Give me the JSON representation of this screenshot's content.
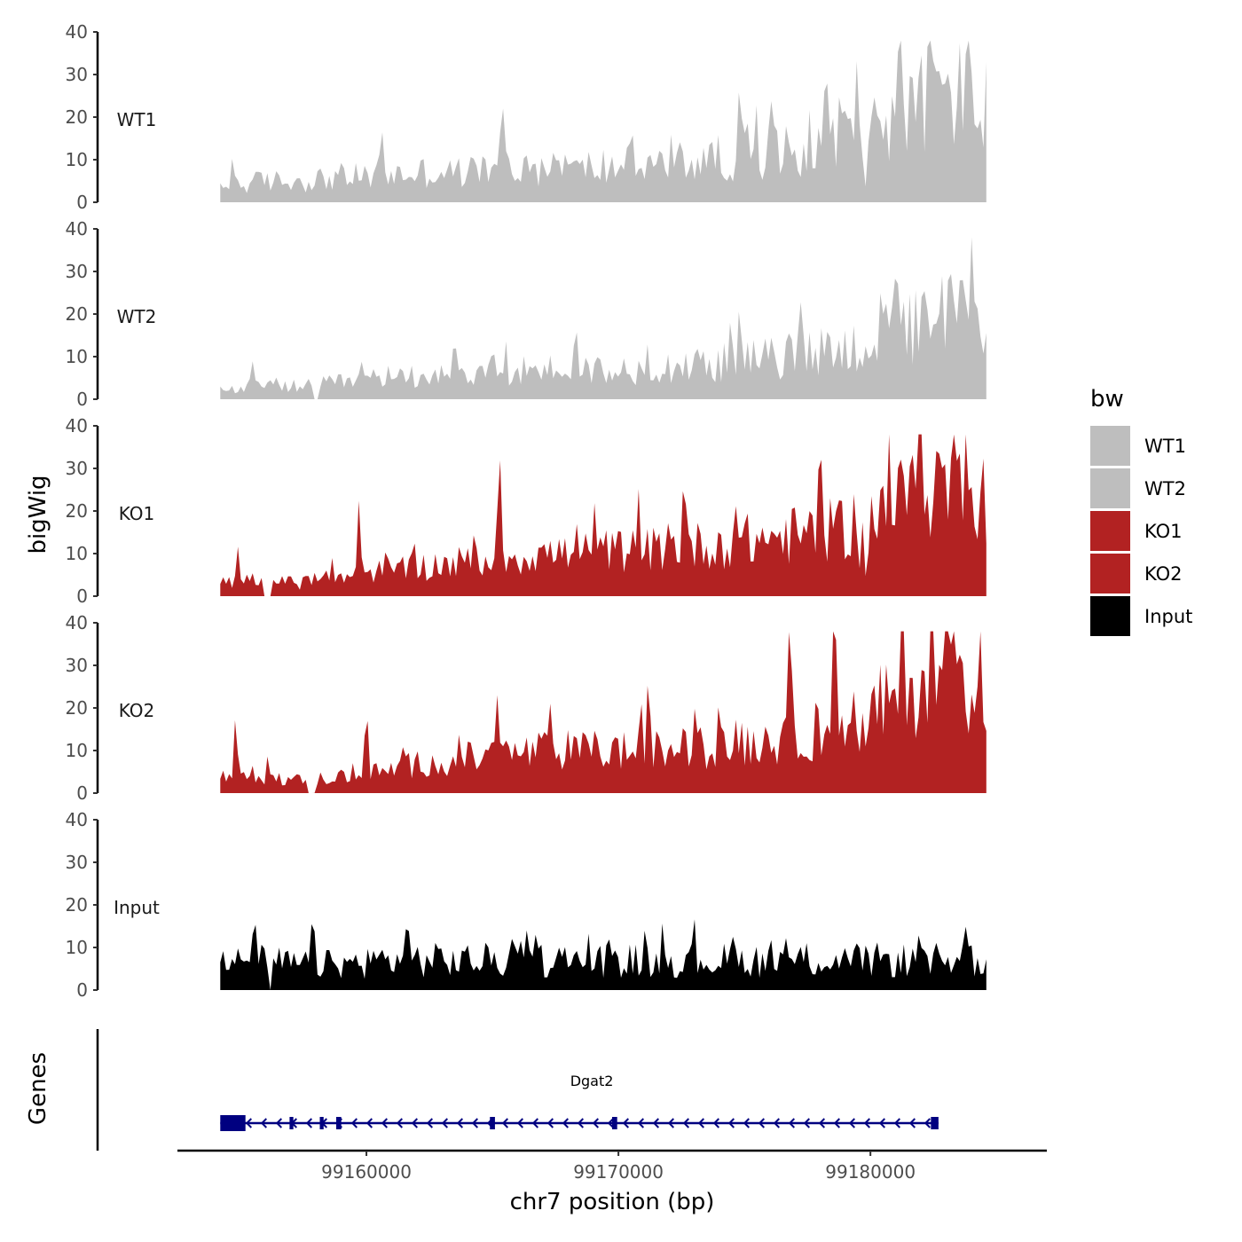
{
  "chart_data": {
    "type": "area",
    "ylabel": "bigWig",
    "xlabel": "chr7 position (bp)",
    "genes_label": "Genes",
    "xlim": [
      99152500,
      99187000
    ],
    "data_xlim": [
      99154200,
      99184600
    ],
    "x_ticks": [
      99160000,
      99170000,
      99180000
    ],
    "x_tick_labels": [
      "99160000",
      "99170000",
      "99180000"
    ],
    "ylim": [
      0,
      40
    ],
    "y_ticks": [
      0,
      10,
      20,
      30,
      40
    ],
    "y_tick_labels": [
      "0",
      "10",
      "20",
      "30",
      "40"
    ],
    "legend": {
      "title": "bw",
      "entries": [
        {
          "label": "WT1",
          "color": "#BEBEBE"
        },
        {
          "label": "WT2",
          "color": "#BEBEBE"
        },
        {
          "label": "KO1",
          "color": "#B22222"
        },
        {
          "label": "KO2",
          "color": "#B22222"
        },
        {
          "label": "Input",
          "color": "#000000"
        }
      ]
    },
    "series": [
      {
        "name": "WT1",
        "color": "#BEBEBE",
        "baseline": [
          3,
          5,
          5,
          6,
          6,
          7,
          7,
          8,
          8,
          8,
          9,
          9,
          10,
          11,
          12,
          14,
          17,
          21,
          26,
          23
        ],
        "amplitude": 0.55,
        "peaks": [
          [
            99154700,
            8
          ],
          [
            99160600,
            13
          ],
          [
            99165400,
            15
          ],
          [
            99174800,
            15
          ],
          [
            99178200,
            18
          ],
          [
            99181200,
            25
          ],
          [
            99182400,
            26
          ],
          [
            99183900,
            20
          ]
        ],
        "dips": [
          [
            99179800,
            4
          ]
        ]
      },
      {
        "name": "WT2",
        "color": "#BEBEBE",
        "baseline": [
          2,
          3,
          3,
          4,
          5,
          6,
          6,
          7,
          7,
          7,
          7,
          8,
          8,
          9,
          10,
          11,
          13,
          16,
          20,
          18
        ],
        "amplitude": 0.55,
        "peaks": [
          [
            99155500,
            5
          ],
          [
            99163500,
            9
          ],
          [
            99168300,
            10
          ],
          [
            99174800,
            12
          ],
          [
            99177200,
            13
          ],
          [
            99181000,
            15
          ],
          [
            99184000,
            16
          ]
        ],
        "dips": [
          [
            99158000,
            8
          ],
          [
            99169800,
            4
          ]
        ]
      },
      {
        "name": "KO1",
        "color": "#B22222",
        "baseline": [
          3,
          4,
          3,
          5,
          6,
          7,
          8,
          9,
          10,
          10,
          11,
          11,
          12,
          13,
          14,
          15,
          18,
          23,
          28,
          24
        ],
        "amplitude": 0.5,
        "peaks": [
          [
            99154900,
            7
          ],
          [
            99159700,
            14
          ],
          [
            99165300,
            19
          ],
          [
            99172600,
            18
          ],
          [
            99178000,
            21
          ],
          [
            99181900,
            33
          ],
          [
            99183800,
            34
          ]
        ],
        "dips": [
          [
            99156100,
            7
          ],
          [
            99179700,
            10
          ]
        ]
      },
      {
        "name": "KO2",
        "color": "#B22222",
        "baseline": [
          4,
          4,
          3,
          4,
          5,
          7,
          8,
          9,
          10,
          10,
          10,
          10,
          11,
          12,
          13,
          15,
          18,
          24,
          30,
          26
        ],
        "amplitude": 0.5,
        "peaks": [
          [
            99154800,
            12
          ],
          [
            99160000,
            15
          ],
          [
            99165200,
            17
          ],
          [
            99171200,
            13
          ],
          [
            99176800,
            21
          ],
          [
            99178500,
            18
          ],
          [
            99181300,
            35
          ],
          [
            99183100,
            33
          ]
        ],
        "dips": [
          [
            99157800,
            6
          ],
          [
            99179800,
            9
          ]
        ]
      },
      {
        "name": "Input",
        "color": "#000000",
        "baseline": [
          6,
          7,
          6,
          6,
          7,
          7,
          7,
          7,
          7,
          7,
          7,
          7,
          7,
          7,
          7,
          7,
          7,
          7,
          7,
          7
        ],
        "amplitude": 0.6,
        "peaks": [
          [
            99155600,
            12
          ],
          [
            99157900,
            12
          ],
          [
            99161600,
            11
          ],
          [
            99166400,
            12
          ],
          [
            99183800,
            11
          ]
        ],
        "dips": [
          [
            99156200,
            5
          ]
        ]
      }
    ],
    "gene": {
      "name": "Dgat2",
      "strand": "-",
      "start": 99154200,
      "end": 99182700,
      "exons": [
        [
          99154200,
          99155200
        ],
        [
          99156950,
          99157100
        ],
        [
          99158150,
          99158300
        ],
        [
          99158800,
          99159000
        ],
        [
          99164900,
          99165100
        ],
        [
          99169750,
          99169950
        ],
        [
          99182400,
          99182700
        ]
      ],
      "color": "#000080"
    }
  }
}
